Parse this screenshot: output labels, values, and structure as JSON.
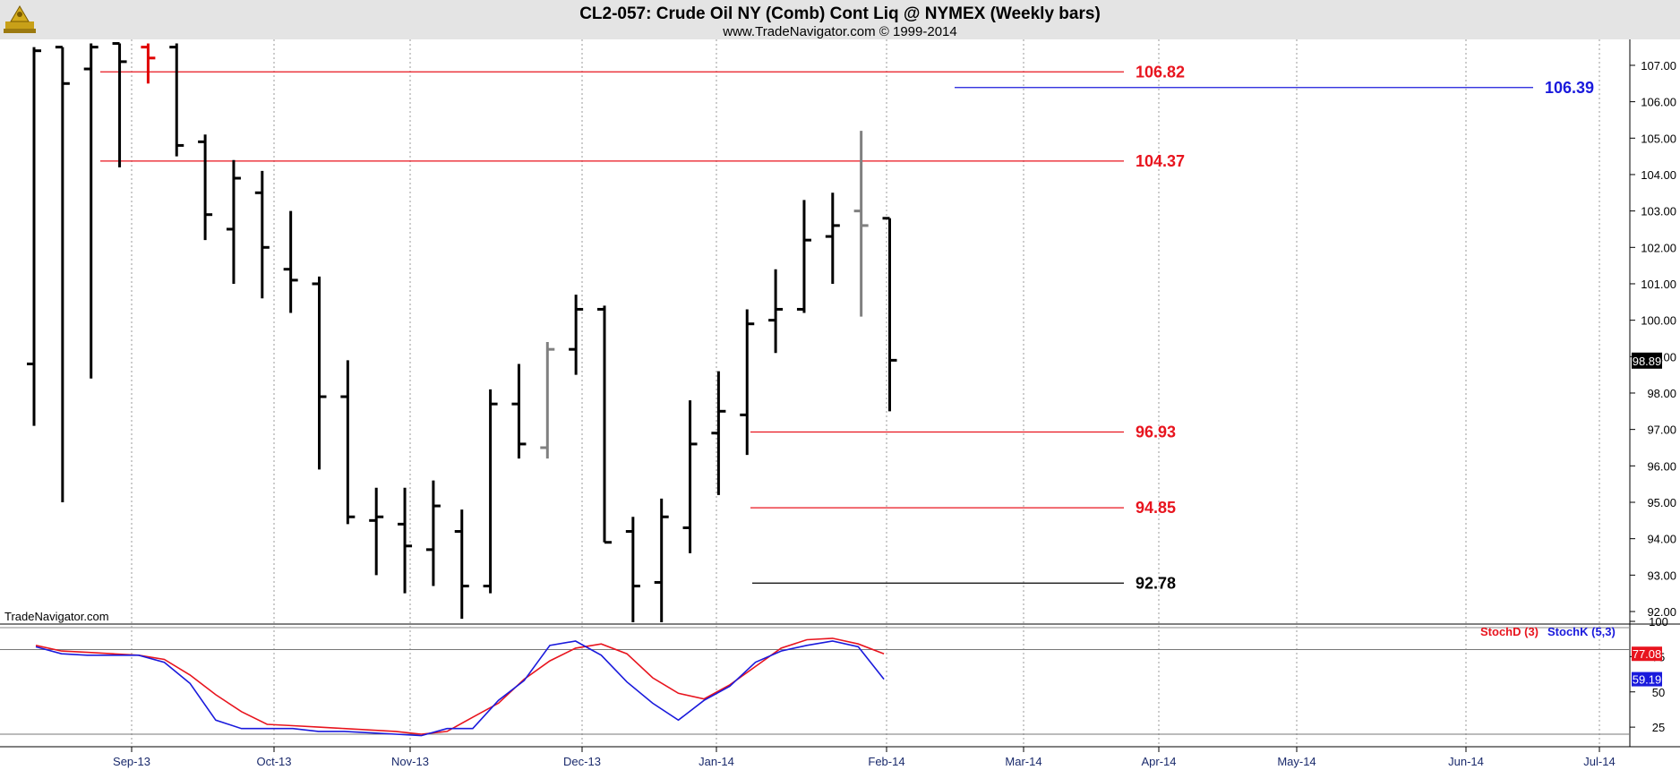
{
  "header": {
    "title": "CL2-057:  Crude Oil NY (Comb) Cont Liq @ NYMEX  (Weekly bars)",
    "subtitle": "www.TradeNavigator.com © 1999-2014"
  },
  "watermark": "TradeNavigator.com",
  "colors": {
    "bar": "#000000",
    "bar_gray": "#808080",
    "bar_red": "#e00000",
    "level_red": "#e8141e",
    "level_blue": "#1a1adc",
    "level_black": "#000000",
    "stochD": "#e8141e",
    "stochK": "#1a1adc",
    "grid": "#9a9a9a",
    "header_bg": "#e4e4e4"
  },
  "chart_data": [
    {
      "type": "ohlc",
      "title": "CL2-057:  Crude Oil NY (Comb) Cont Liq @ NYMEX  (Weekly bars)",
      "ylim": [
        91.7,
        107.6
      ],
      "x_ticks": [
        "Sep-13",
        "Oct-13",
        "Nov-13",
        "Dec-13",
        "Jan-14",
        "Feb-14",
        "Mar-14",
        "Apr-14",
        "May-14",
        "Jun-14",
        "Jul-14"
      ],
      "y_ticks": [
        "92.00",
        "93.00",
        "94.00",
        "95.00",
        "96.00",
        "97.00",
        "98.00",
        "99.00",
        "100.00",
        "101.00",
        "102.00",
        "103.00",
        "104.00",
        "105.00",
        "106.00",
        "107.00"
      ],
      "last_price": "98.89",
      "bars": [
        {
          "week": 0,
          "open": 98.8,
          "high": 107.5,
          "low": 97.1,
          "close": 107.4,
          "color": "bar"
        },
        {
          "week": 1,
          "open": 107.5,
          "high": 107.5,
          "low": 95.0,
          "close": 106.5,
          "color": "bar"
        },
        {
          "week": 2,
          "open": 106.9,
          "high": 107.6,
          "low": 98.4,
          "close": 107.5,
          "color": "bar"
        },
        {
          "week": 3,
          "open": 107.6,
          "high": 107.6,
          "low": 104.2,
          "close": 107.1,
          "color": "bar"
        },
        {
          "week": 4,
          "open": 107.5,
          "high": 107.6,
          "low": 106.5,
          "close": 107.2,
          "color": "bar_red"
        },
        {
          "week": 5,
          "open": 107.5,
          "high": 107.6,
          "low": 104.5,
          "close": 104.8,
          "color": "bar"
        },
        {
          "week": 6,
          "open": 104.9,
          "high": 105.1,
          "low": 102.2,
          "close": 102.9,
          "color": "bar"
        },
        {
          "week": 7,
          "open": 102.5,
          "high": 104.4,
          "low": 101.0,
          "close": 103.9,
          "color": "bar"
        },
        {
          "week": 8,
          "open": 103.5,
          "high": 104.1,
          "low": 100.6,
          "close": 102.0,
          "color": "bar"
        },
        {
          "week": 9,
          "open": 101.4,
          "high": 103.0,
          "low": 100.2,
          "close": 101.1,
          "color": "bar"
        },
        {
          "week": 10,
          "open": 101.0,
          "high": 101.2,
          "low": 95.9,
          "close": 97.9,
          "color": "bar"
        },
        {
          "week": 11,
          "open": 97.9,
          "high": 98.9,
          "low": 94.4,
          "close": 94.6,
          "color": "bar"
        },
        {
          "week": 12,
          "open": 94.5,
          "high": 95.4,
          "low": 93.0,
          "close": 94.6,
          "color": "bar"
        },
        {
          "week": 13,
          "open": 94.4,
          "high": 95.4,
          "low": 92.5,
          "close": 93.8,
          "color": "bar"
        },
        {
          "week": 14,
          "open": 93.7,
          "high": 95.6,
          "low": 92.7,
          "close": 94.9,
          "color": "bar"
        },
        {
          "week": 15,
          "open": 94.2,
          "high": 94.8,
          "low": 91.8,
          "close": 92.7,
          "color": "bar"
        },
        {
          "week": 16,
          "open": 92.7,
          "high": 98.1,
          "low": 92.5,
          "close": 97.7,
          "color": "bar"
        },
        {
          "week": 17,
          "open": 97.7,
          "high": 98.8,
          "low": 96.2,
          "close": 96.6,
          "color": "bar"
        },
        {
          "week": 18,
          "open": 96.5,
          "high": 99.4,
          "low": 96.2,
          "close": 99.2,
          "color": "bar_gray"
        },
        {
          "week": 19,
          "open": 99.2,
          "high": 100.7,
          "low": 98.5,
          "close": 100.3,
          "color": "bar"
        },
        {
          "week": 20,
          "open": 100.3,
          "high": 100.4,
          "low": 93.9,
          "close": 93.9,
          "color": "bar"
        },
        {
          "week": 21,
          "open": 94.2,
          "high": 94.6,
          "low": 91.7,
          "close": 92.7,
          "color": "bar"
        },
        {
          "week": 22,
          "open": 92.8,
          "high": 95.1,
          "low": 91.7,
          "close": 94.6,
          "color": "bar"
        },
        {
          "week": 23,
          "open": 94.3,
          "high": 97.8,
          "low": 93.6,
          "close": 96.6,
          "color": "bar"
        },
        {
          "week": 24,
          "open": 96.9,
          "high": 98.6,
          "low": 95.2,
          "close": 97.5,
          "color": "bar"
        },
        {
          "week": 25,
          "open": 97.4,
          "high": 100.3,
          "low": 96.3,
          "close": 99.9,
          "color": "bar"
        },
        {
          "week": 26,
          "open": 100.0,
          "high": 101.4,
          "low": 99.1,
          "close": 100.3,
          "color": "bar"
        },
        {
          "week": 27,
          "open": 100.3,
          "high": 103.3,
          "low": 100.2,
          "close": 102.2,
          "color": "bar"
        },
        {
          "week": 28,
          "open": 102.3,
          "high": 103.5,
          "low": 101.0,
          "close": 102.6,
          "color": "bar"
        },
        {
          "week": 29,
          "open": 103.0,
          "high": 105.2,
          "low": 100.1,
          "close": 102.6,
          "color": "bar_gray"
        },
        {
          "week": 30,
          "open": 102.8,
          "high": 102.8,
          "low": 97.5,
          "close": 98.9,
          "color": "bar"
        }
      ],
      "levels": [
        {
          "value": 106.82,
          "label": "106.82",
          "color": "level_red"
        },
        {
          "value": 104.37,
          "label": "104.37",
          "color": "level_red"
        },
        {
          "value": 96.93,
          "label": "96.93",
          "color": "level_red"
        },
        {
          "value": 94.85,
          "label": "94.85",
          "color": "level_red"
        },
        {
          "value": 92.78,
          "label": "92.78",
          "color": "level_black"
        },
        {
          "value": 106.39,
          "label": "106.39",
          "color": "level_blue"
        }
      ]
    },
    {
      "type": "line",
      "title": "",
      "ylim": [
        20,
        100
      ],
      "y_ticks": [
        "25",
        "50",
        "75",
        "100"
      ],
      "reference_lines": [
        80,
        20
      ],
      "series": [
        {
          "name": "StochD (3)",
          "color": "stochD",
          "last_label": "77.08",
          "values": [
            83,
            79,
            78,
            77,
            76,
            73,
            62,
            48,
            36,
            27,
            26,
            25,
            24,
            23,
            22,
            20,
            22,
            32,
            42,
            59,
            72,
            81,
            84,
            77,
            60,
            49,
            45,
            55,
            68,
            81,
            87,
            88,
            84,
            77
          ]
        },
        {
          "name": "StochK (5,3)",
          "color": "stochK",
          "last_label": "59.19",
          "values": [
            82,
            77,
            76,
            76,
            76,
            71,
            56,
            30,
            24,
            24,
            24,
            22,
            22,
            21,
            20,
            19,
            24,
            24,
            44,
            58,
            83,
            86,
            76,
            57,
            42,
            30,
            44,
            54,
            71,
            79,
            83,
            86,
            82,
            59
          ]
        }
      ]
    }
  ]
}
